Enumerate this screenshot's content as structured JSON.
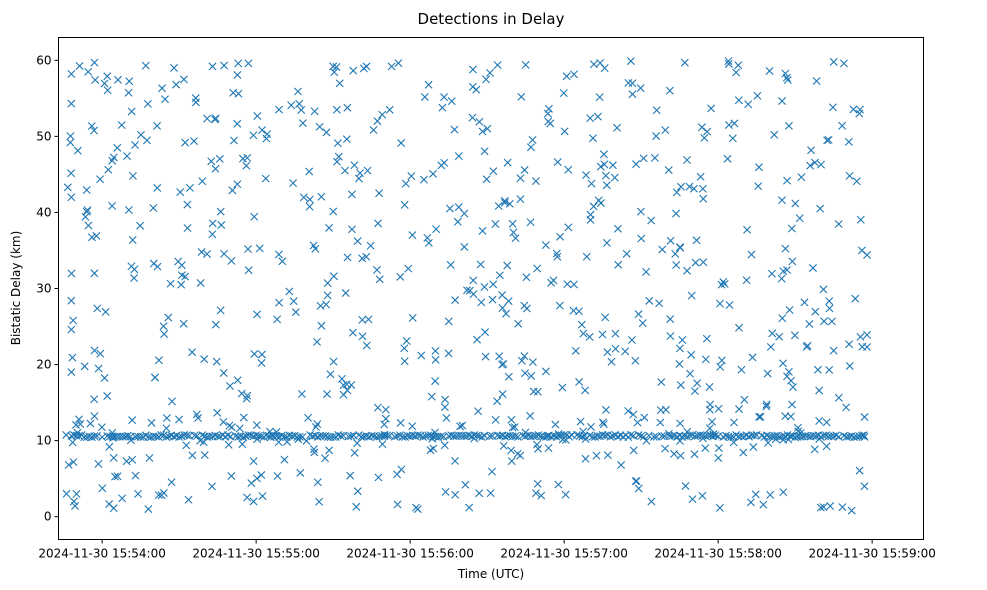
{
  "chart_data": {
    "type": "scatter",
    "title": "Detections in Delay",
    "xlabel": "Time (UTC)",
    "ylabel": "Bistatic Delay (km)",
    "marker": "x",
    "series_color": "#1f77b4",
    "grid": false,
    "x_units": "seconds after 2024-11-30 15:54:00 UTC",
    "xlim": [
      -17,
      320
    ],
    "ylim": [
      -3,
      63
    ],
    "x_ticks": [
      {
        "value": 0,
        "label": "2024-11-30 15:54:00"
      },
      {
        "value": 60,
        "label": "2024-11-30 15:55:00"
      },
      {
        "value": 120,
        "label": "2024-11-30 15:56:00"
      },
      {
        "value": 180,
        "label": "2024-11-30 15:57:00"
      },
      {
        "value": 240,
        "label": "2024-11-30 15:58:00"
      },
      {
        "value": 300,
        "label": "2024-11-30 15:59:00"
      }
    ],
    "y_ticks": [
      {
        "value": 0,
        "label": "0"
      },
      {
        "value": 10,
        "label": "10"
      },
      {
        "value": 20,
        "label": "20"
      },
      {
        "value": 30,
        "label": "30"
      },
      {
        "value": 40,
        "label": "40"
      },
      {
        "value": 50,
        "label": "50"
      },
      {
        "value": 60,
        "label": "60"
      }
    ],
    "time_range": [
      -14,
      297
    ],
    "constant_band": {
      "delay": 10.6,
      "step_seconds": 1.0,
      "note": "dense row of detections at ~10.6 km across the whole span"
    },
    "scattered": {
      "count": 700,
      "delay_range": [
        1,
        60
      ],
      "seed": 20241130
    },
    "points": [
      {
        "t": -12,
        "d": 58.2
      },
      {
        "t": -12,
        "d": 54.3
      },
      {
        "t": -12,
        "d": 42.0
      },
      {
        "t": -12,
        "d": 28.4
      },
      {
        "t": -12,
        "d": 24.6
      },
      {
        "t": -12,
        "d": 19.0
      },
      {
        "t": -11,
        "d": 2.0
      },
      {
        "t": -10,
        "d": 3.0
      },
      {
        "t": -9,
        "d": 12.8
      },
      {
        "t": -6,
        "d": 40.1
      },
      {
        "t": -3,
        "d": 59.7
      },
      {
        "t": -3,
        "d": 32.0
      },
      {
        "t": 2,
        "d": 57.9
      },
      {
        "t": 12,
        "d": 44.8
      },
      {
        "t": 13,
        "d": 5.4
      },
      {
        "t": 14,
        "d": 3.0
      },
      {
        "t": 17,
        "d": 59.3
      },
      {
        "t": 18,
        "d": 1.0
      },
      {
        "t": 28,
        "d": 59.0
      },
      {
        "t": 43,
        "d": 59.2
      },
      {
        "t": 53,
        "d": 59.6
      },
      {
        "t": 57,
        "d": 59.6
      },
      {
        "t": 59,
        "d": 2.0
      },
      {
        "t": 90,
        "d": 59.2
      },
      {
        "t": 99,
        "d": 1.3
      },
      {
        "t": 103,
        "d": 59.2
      },
      {
        "t": 123,
        "d": 1.0
      },
      {
        "t": 143,
        "d": 1.2
      },
      {
        "t": 165,
        "d": 59.4
      },
      {
        "t": 181,
        "d": 57.9
      },
      {
        "t": 206,
        "d": 59.9
      },
      {
        "t": 214,
        "d": 2.0
      },
      {
        "t": 227,
        "d": 59.7
      },
      {
        "t": 230,
        "d": 2.3
      },
      {
        "t": 244,
        "d": 59.9
      },
      {
        "t": 260,
        "d": 58.6
      },
      {
        "t": 280,
        "d": 1.2
      },
      {
        "t": 285,
        "d": 59.8
      },
      {
        "t": 289,
        "d": 59.6
      },
      {
        "t": 292,
        "d": 0.8
      },
      {
        "t": 297,
        "d": 4.0
      },
      {
        "t": 297,
        "d": 13.1
      },
      {
        "t": 298,
        "d": 23.9
      },
      {
        "t": 298,
        "d": 22.3
      },
      {
        "t": 298,
        "d": 34.4
      },
      {
        "t": 296,
        "d": 35.0
      },
      {
        "t": 295,
        "d": 53.0
      },
      {
        "t": 294,
        "d": 44.1
      }
    ]
  }
}
